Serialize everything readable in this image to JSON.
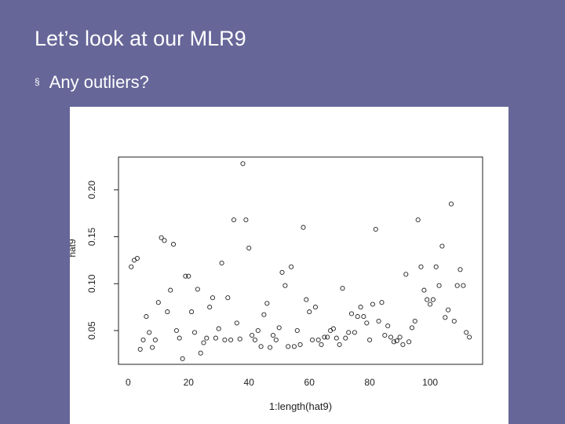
{
  "slide": {
    "title": "Let’s look at our MLR9",
    "bullet_marker": "§",
    "bullet_text": "Any outliers?"
  },
  "chart_data": {
    "type": "scatter",
    "title": "",
    "xlabel": "1:length(hat9)",
    "ylabel": "hat9",
    "xlim": [
      -3.2,
      117.4
    ],
    "ylim": [
      0.014,
      0.235
    ],
    "xticks": [
      {
        "value": 0,
        "label": "0"
      },
      {
        "value": 20,
        "label": "20"
      },
      {
        "value": 40,
        "label": "40"
      },
      {
        "value": 60,
        "label": "60"
      },
      {
        "value": 80,
        "label": "80"
      },
      {
        "value": 100,
        "label": "100"
      }
    ],
    "yticks": [
      {
        "value": 0.05,
        "label": "0.05"
      },
      {
        "value": 0.1,
        "label": "0.10"
      },
      {
        "value": 0.15,
        "label": "0.15"
      },
      {
        "value": 0.2,
        "label": "0.20"
      }
    ],
    "grid": false,
    "marker": "open-circle",
    "colors": {
      "points": "#222222",
      "axes": "#222222",
      "text": "#222222"
    },
    "series": [
      {
        "x": [
          1,
          2,
          3,
          4,
          5,
          6,
          7,
          8,
          9,
          10,
          11,
          12,
          13,
          14,
          15,
          16,
          17,
          18,
          19,
          20,
          21,
          22,
          23,
          24,
          25,
          26,
          27,
          28,
          29,
          30,
          31,
          32,
          33,
          34,
          35,
          36,
          37,
          38,
          39,
          40,
          41,
          42,
          43,
          44,
          45,
          46,
          47,
          48,
          49,
          50,
          51,
          52,
          53,
          54,
          55,
          56,
          57,
          58,
          59,
          60,
          61,
          62,
          63,
          64,
          65,
          66,
          67,
          68,
          69,
          70,
          71,
          72,
          73,
          74,
          75,
          76,
          77,
          78,
          79,
          80,
          81,
          82,
          83,
          84,
          85,
          86,
          87,
          88,
          89,
          90,
          91,
          92,
          93,
          94,
          95,
          96,
          97,
          98,
          99,
          100,
          101,
          102,
          103,
          104,
          105,
          106,
          107,
          108,
          109,
          110,
          111,
          112,
          113
        ],
        "y": [
          0.118,
          0.125,
          0.127,
          0.03,
          0.04,
          0.065,
          0.048,
          0.032,
          0.04,
          0.08,
          0.149,
          0.146,
          0.07,
          0.093,
          0.142,
          0.05,
          0.042,
          0.02,
          0.108,
          0.108,
          0.07,
          0.048,
          0.094,
          0.026,
          0.037,
          0.042,
          0.075,
          0.085,
          0.042,
          0.052,
          0.122,
          0.04,
          0.085,
          0.04,
          0.168,
          0.058,
          0.041,
          0.228,
          0.168,
          0.138,
          0.045,
          0.04,
          0.05,
          0.033,
          0.067,
          0.079,
          0.032,
          0.045,
          0.04,
          0.053,
          0.112,
          0.098,
          0.033,
          0.118,
          0.033,
          0.05,
          0.035,
          0.16,
          0.083,
          0.07,
          0.04,
          0.075,
          0.04,
          0.035,
          0.043,
          0.043,
          0.05,
          0.052,
          0.042,
          0.035,
          0.095,
          0.042,
          0.048,
          0.068,
          0.048,
          0.065,
          0.075,
          0.065,
          0.058,
          0.04,
          0.078,
          0.158,
          0.06,
          0.08,
          0.045,
          0.055,
          0.043,
          0.038,
          0.039,
          0.043,
          0.035,
          0.11,
          0.038,
          0.053,
          0.06,
          0.168,
          0.118,
          0.093,
          0.083,
          0.078,
          0.083,
          0.118,
          0.098,
          0.14,
          0.064,
          0.072,
          0.185,
          0.06,
          0.098,
          0.115,
          0.098,
          0.048,
          0.043
        ]
      }
    ]
  }
}
